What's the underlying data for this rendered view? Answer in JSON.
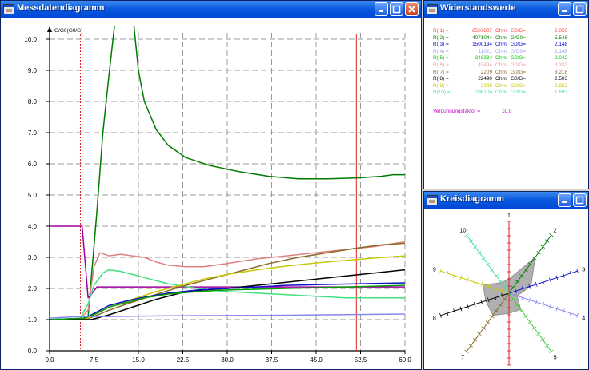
{
  "windows": {
    "chart": {
      "title": "Messdatendiagramm"
    },
    "resistance": {
      "title": "Widerstandswerte"
    },
    "radar": {
      "title": "Kreisdiagramm"
    }
  },
  "icons": {
    "app": "app-window-icon",
    "minimize": "minimize-icon",
    "maximize": "maximize-icon",
    "close": "close-icon"
  },
  "chart_data": {
    "type": "line",
    "ylabel": "G/G0(G0/G)",
    "xlim": [
      0,
      60
    ],
    "ylim": [
      0,
      10
    ],
    "x_ticks": [
      "0.0",
      "7.5",
      "15.0",
      "22.5",
      "30.0",
      "37.5",
      "45.0",
      "52.5",
      "60.0"
    ],
    "y_ticks": [
      "0.0",
      "1.0",
      "2.0",
      "3.0",
      "4.0",
      "5.0",
      "6.0",
      "7.0",
      "8.0",
      "9.0",
      "10.0"
    ],
    "vertical_markers": [
      {
        "x": 5.2,
        "color": "#dd2222",
        "style": "dotted"
      },
      {
        "x": 51.8,
        "color": "#dd2222",
        "style": "solid"
      }
    ],
    "series": [
      {
        "color": "#007a00",
        "points": [
          [
            0,
            1.0
          ],
          [
            5,
            1.0
          ],
          [
            6.5,
            1.1
          ],
          [
            8,
            4.5
          ],
          [
            9,
            7.0
          ],
          [
            10,
            8.8
          ],
          [
            11,
            10.5
          ],
          [
            14.2,
            10.5
          ],
          [
            15,
            9.0
          ],
          [
            16,
            8.0
          ],
          [
            18,
            7.1
          ],
          [
            20,
            6.6
          ],
          [
            23,
            6.2
          ],
          [
            27,
            5.95
          ],
          [
            32,
            5.75
          ],
          [
            37,
            5.6
          ],
          [
            42,
            5.52
          ],
          [
            47,
            5.52
          ],
          [
            52,
            5.55
          ],
          [
            56,
            5.6
          ],
          [
            58,
            5.65
          ],
          [
            60,
            5.65
          ]
        ]
      },
      {
        "color": "#e08080",
        "points": [
          [
            0,
            1.0
          ],
          [
            5,
            1.0
          ],
          [
            6.5,
            1.3
          ],
          [
            7.5,
            2.7
          ],
          [
            8.5,
            3.15
          ],
          [
            10,
            3.05
          ],
          [
            12,
            3.1
          ],
          [
            14,
            3.05
          ],
          [
            16,
            3.0
          ],
          [
            18,
            2.85
          ],
          [
            20,
            2.75
          ],
          [
            23,
            2.7
          ],
          [
            26,
            2.7
          ],
          [
            30,
            2.8
          ],
          [
            35,
            2.95
          ],
          [
            40,
            3.05
          ],
          [
            45,
            3.15
          ],
          [
            50,
            3.25
          ],
          [
            55,
            3.35
          ],
          [
            60,
            3.5
          ]
        ]
      },
      {
        "color": "#a000a0",
        "points": [
          [
            0,
            4.0
          ],
          [
            5.5,
            4.0
          ],
          [
            6.5,
            1.7
          ],
          [
            7,
            1.8
          ],
          [
            8,
            2.05
          ],
          [
            60,
            2.05
          ]
        ]
      },
      {
        "color": "#40e080",
        "points": [
          [
            0,
            1.0
          ],
          [
            5,
            1.0
          ],
          [
            6.5,
            1.5
          ],
          [
            7.5,
            2.1
          ],
          [
            9,
            2.5
          ],
          [
            10,
            2.6
          ],
          [
            12,
            2.55
          ],
          [
            14,
            2.45
          ],
          [
            17,
            2.3
          ],
          [
            20,
            2.15
          ],
          [
            25,
            2.0
          ],
          [
            30,
            1.9
          ],
          [
            40,
            1.8
          ],
          [
            50,
            1.7
          ],
          [
            60,
            1.7
          ]
        ]
      },
      {
        "color": "#8a6a2a",
        "points": [
          [
            0,
            1.0
          ],
          [
            6,
            1.0
          ],
          [
            7.5,
            1.1
          ],
          [
            10,
            1.3
          ],
          [
            13,
            1.5
          ],
          [
            17,
            1.75
          ],
          [
            22,
            2.05
          ],
          [
            27,
            2.3
          ],
          [
            32,
            2.55
          ],
          [
            37,
            2.8
          ],
          [
            42,
            3.0
          ],
          [
            47,
            3.15
          ],
          [
            52,
            3.3
          ],
          [
            56,
            3.4
          ],
          [
            60,
            3.45
          ]
        ]
      },
      {
        "color": "#c8c800",
        "points": [
          [
            0,
            1.0
          ],
          [
            6,
            1.0
          ],
          [
            7.5,
            1.15
          ],
          [
            10,
            1.4
          ],
          [
            14,
            1.65
          ],
          [
            18,
            1.9
          ],
          [
            22,
            2.1
          ],
          [
            26,
            2.3
          ],
          [
            30,
            2.45
          ],
          [
            35,
            2.6
          ],
          [
            40,
            2.72
          ],
          [
            45,
            2.82
          ],
          [
            50,
            2.9
          ],
          [
            55,
            2.98
          ],
          [
            60,
            3.05
          ]
        ]
      },
      {
        "color": "#000000",
        "points": [
          [
            0,
            1.0
          ],
          [
            7,
            1.0
          ],
          [
            8,
            1.05
          ],
          [
            10,
            1.15
          ],
          [
            14,
            1.4
          ],
          [
            18,
            1.65
          ],
          [
            22,
            1.85
          ],
          [
            26,
            1.95
          ],
          [
            30,
            2.0
          ],
          [
            35,
            2.1
          ],
          [
            40,
            2.2
          ],
          [
            45,
            2.3
          ],
          [
            50,
            2.4
          ],
          [
            55,
            2.5
          ],
          [
            60,
            2.6
          ]
        ]
      },
      {
        "color": "#1010c8",
        "points": [
          [
            0,
            1.0
          ],
          [
            6,
            1.05
          ],
          [
            8,
            1.25
          ],
          [
            10,
            1.45
          ],
          [
            13,
            1.6
          ],
          [
            16,
            1.72
          ],
          [
            20,
            1.85
          ],
          [
            25,
            1.95
          ],
          [
            30,
            2.0
          ],
          [
            35,
            2.05
          ],
          [
            40,
            2.1
          ],
          [
            45,
            2.12
          ],
          [
            50,
            2.14
          ],
          [
            55,
            2.16
          ],
          [
            60,
            2.18
          ]
        ]
      },
      {
        "color": "#00a000",
        "points": [
          [
            0,
            1.0
          ],
          [
            6,
            1.05
          ],
          [
            8,
            1.2
          ],
          [
            10,
            1.4
          ],
          [
            13,
            1.55
          ],
          [
            16,
            1.7
          ],
          [
            20,
            1.82
          ],
          [
            25,
            1.9
          ],
          [
            30,
            1.95
          ],
          [
            40,
            2.0
          ],
          [
            50,
            2.05
          ],
          [
            60,
            2.1
          ]
        ]
      },
      {
        "color": "#8888ee",
        "points": [
          [
            0,
            1.05
          ],
          [
            5,
            1.1
          ],
          [
            7,
            1.1
          ],
          [
            10,
            1.1
          ],
          [
            20,
            1.12
          ],
          [
            30,
            1.13
          ],
          [
            40,
            1.14
          ],
          [
            50,
            1.16
          ],
          [
            60,
            1.18
          ]
        ]
      }
    ]
  },
  "resistance": {
    "rows": [
      {
        "label": "R( 1) =",
        "value": "8587807",
        "unit": "Ohm",
        "ratio_label": "G0/G=",
        "ratio": "2.050",
        "color": "#ff4040"
      },
      {
        "label": "R( 2) =",
        "value": "4071044",
        "unit": "Ohm",
        "ratio_label": "G/G0=",
        "ratio": "5.548",
        "color": "#008000"
      },
      {
        "label": "R( 3) =",
        "value": "1500134",
        "unit": "Ohm",
        "ratio_label": "G0/G=",
        "ratio": "2.148",
        "color": "#0000cc"
      },
      {
        "label": "R( 4) =",
        "value": "11021",
        "unit": "Ohm",
        "ratio_label": "G/G0=",
        "ratio": "1.148",
        "color": "#9a9af0"
      },
      {
        "label": "R( 5) =",
        "value": "348334",
        "unit": "Ohm",
        "ratio_label": "G0/G=",
        "ratio": "2.042",
        "color": "#00cc00"
      },
      {
        "label": "R( 6) =",
        "value": "45494",
        "unit": "Ohm",
        "ratio_label": "G0/G=",
        "ratio": "3.333",
        "color": "#f0a0a0"
      },
      {
        "label": "R( 7) =",
        "value": "2209",
        "unit": "Ohm",
        "ratio_label": "G0/G=",
        "ratio": "3.218",
        "color": "#8a6a2a"
      },
      {
        "label": "R( 8) =",
        "value": "22490",
        "unit": "Ohm",
        "ratio_label": "G0/G=",
        "ratio": "2.503",
        "color": "#000000"
      },
      {
        "label": "R( 9) =",
        "value": "2345",
        "unit": "Ohm",
        "ratio_label": "G0/G=",
        "ratio": "2.952",
        "color": "#c8c800"
      },
      {
        "label": "R(10) =",
        "value": "298104",
        "unit": "Ohm",
        "ratio_label": "G0/G=",
        "ratio": "1.693",
        "color": "#40e0a0"
      }
    ],
    "dilution_label": "Verdünnungsfaktor =",
    "dilution_value": "10.0"
  },
  "radar": {
    "spokes": [
      {
        "label": "1",
        "color": "#dd2222"
      },
      {
        "label": "2",
        "color": "#007a00"
      },
      {
        "label": "3",
        "color": "#1010c8"
      },
      {
        "label": "4",
        "color": "#8888ee"
      },
      {
        "label": "5",
        "color": "#40d040"
      },
      {
        "label": "6",
        "color": "#dd2222"
      },
      {
        "label": "7",
        "color": "#8a6a2a"
      },
      {
        "label": "8",
        "color": "#000000"
      },
      {
        "label": "9",
        "color": "#c8c800"
      },
      {
        "label": "10",
        "color": "#40e0a0"
      }
    ],
    "polygon_values": [
      0.2,
      0.62,
      0.32,
      0.12,
      0.28,
      0.28,
      0.38,
      0.34,
      0.38,
      0.18
    ],
    "polygon_color": "#b0b0b0"
  }
}
